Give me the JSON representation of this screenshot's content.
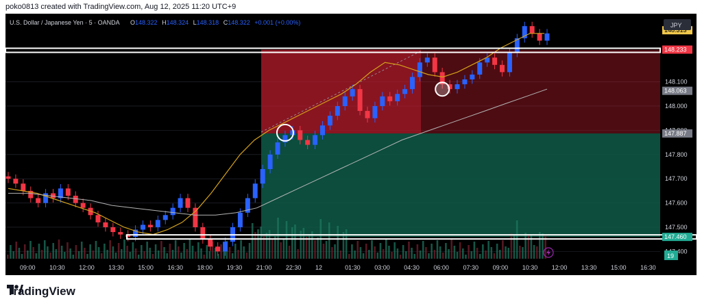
{
  "header": {
    "attribution": "poko0813 created with TradingView.com, Aug 12, 2025 11:20 UTC+9"
  },
  "brand": {
    "name": "TradingView"
  },
  "legend": {
    "symbol": "U.S. Dollar / Japanese Yen · 5 · OANDA",
    "o_label": "O",
    "o": "148.322",
    "h_label": "H",
    "h": "148.324",
    "l_label": "L",
    "l": "148.318",
    "c_label": "C",
    "c": "148.322",
    "change": "+0.001 (+0.00%)"
  },
  "currency": "JPY",
  "volume_badge": "19",
  "colors": {
    "up": "#2962ff",
    "down": "#f23645",
    "ma_fast": "#d4a21a",
    "ma_slow": "#b5b5b5",
    "stop_zone": "#b71c2c",
    "target_zone": "#0e5a48",
    "price_badge": "#f2c94c",
    "stop_badge": "#f23645",
    "support_badge": "#22ab94",
    "current_badge": "#787b86"
  },
  "chart_data": {
    "type": "candlestick",
    "title": "U.S. Dollar / Japanese Yen · 5 · OANDA",
    "y_ticks": [
      "148.100",
      "148.000",
      "147.900",
      "147.800",
      "147.700",
      "147.600",
      "147.500",
      "147.400"
    ],
    "ylim": [
      147.37,
      148.37
    ],
    "x_ticks": [
      "09:00",
      "10:30",
      "12:00",
      "13:30",
      "15:00",
      "16:30",
      "18:00",
      "19:30",
      "21:00",
      "22:30",
      "12",
      "01:30",
      "03:00",
      "04:30",
      "06:00",
      "07:30",
      "09:00",
      "10:30",
      "12:00",
      "13:30",
      "15:00",
      "16:30"
    ],
    "price_labels": [
      {
        "value": "148.313",
        "kind": "last_price"
      },
      {
        "value": "148.233",
        "kind": "stop"
      },
      {
        "value": "148.063",
        "kind": "current"
      },
      {
        "value": "147.887",
        "kind": "entry"
      },
      {
        "value": "147.460",
        "kind": "support"
      }
    ],
    "candles_close": [
      147.7,
      147.68,
      147.65,
      147.62,
      147.6,
      147.64,
      147.62,
      147.66,
      147.63,
      147.6,
      147.58,
      147.55,
      147.52,
      147.5,
      147.48,
      147.47,
      147.46,
      147.49,
      147.51,
      147.5,
      147.53,
      147.55,
      147.58,
      147.62,
      147.58,
      147.5,
      147.45,
      147.42,
      147.4,
      147.44,
      147.5,
      147.56,
      147.62,
      147.68,
      147.74,
      147.8,
      147.85,
      147.88,
      147.9,
      147.86,
      147.84,
      147.88,
      147.92,
      147.96,
      148.0,
      148.04,
      148.07,
      147.98,
      147.95,
      148.0,
      148.04,
      148.02,
      148.05,
      148.07,
      148.12,
      148.18,
      148.2,
      148.14,
      148.09,
      148.07,
      148.09,
      148.11,
      148.13,
      148.18,
      148.2,
      148.17,
      148.14,
      148.22,
      148.28,
      148.33,
      148.3,
      148.27,
      148.3
    ],
    "ma_fast": [
      147.66,
      147.65,
      147.64,
      147.62,
      147.6,
      147.58,
      147.56,
      147.53,
      147.5,
      147.48,
      147.47,
      147.49,
      147.52,
      147.57,
      147.64,
      147.72,
      147.8,
      147.86,
      147.9,
      147.93,
      147.96,
      147.99,
      148.02,
      148.05,
      148.09,
      148.14,
      148.18,
      148.17,
      148.15,
      148.13,
      148.12,
      148.14,
      148.17,
      148.2,
      148.24,
      148.27,
      148.3,
      148.3
    ],
    "ma_slow": [
      147.64,
      147.64,
      147.63,
      147.62,
      147.61,
      147.59,
      147.58,
      147.57,
      147.56,
      147.55,
      147.55,
      147.56,
      147.58,
      147.62,
      147.66,
      147.7,
      147.74,
      147.78,
      147.82,
      147.86,
      147.89,
      147.92,
      147.95,
      147.98,
      148.01,
      148.04,
      148.07
    ],
    "zones": {
      "stop_top": 148.233,
      "entry": 147.887,
      "target": 147.46
    },
    "levels": [
      {
        "name": "resistance",
        "value": 148.233
      },
      {
        "name": "support",
        "value": 147.46
      }
    ],
    "markers": [
      {
        "name": "entry-circle",
        "x_index": 37,
        "y": 147.89
      },
      {
        "name": "retest-circle",
        "x_index": 58,
        "y": 148.07
      }
    ],
    "grid": true,
    "legend": "top-left"
  }
}
